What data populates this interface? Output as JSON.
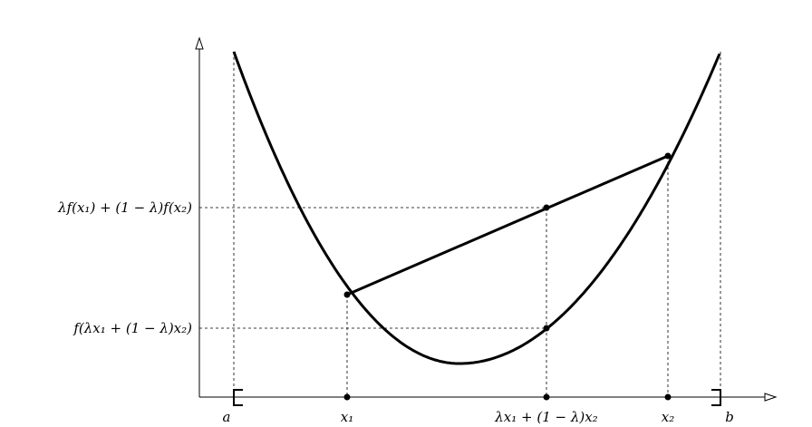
{
  "y_labels": [
    "λf(x₁) + (1 − λ)f(x₂)",
    "f(λx₁ + (1 − λ)x₂)"
  ],
  "x_labels": [
    "a",
    "x₁",
    "λx₁ + (1 − λ)x₂",
    "x₂",
    "b"
  ]
}
